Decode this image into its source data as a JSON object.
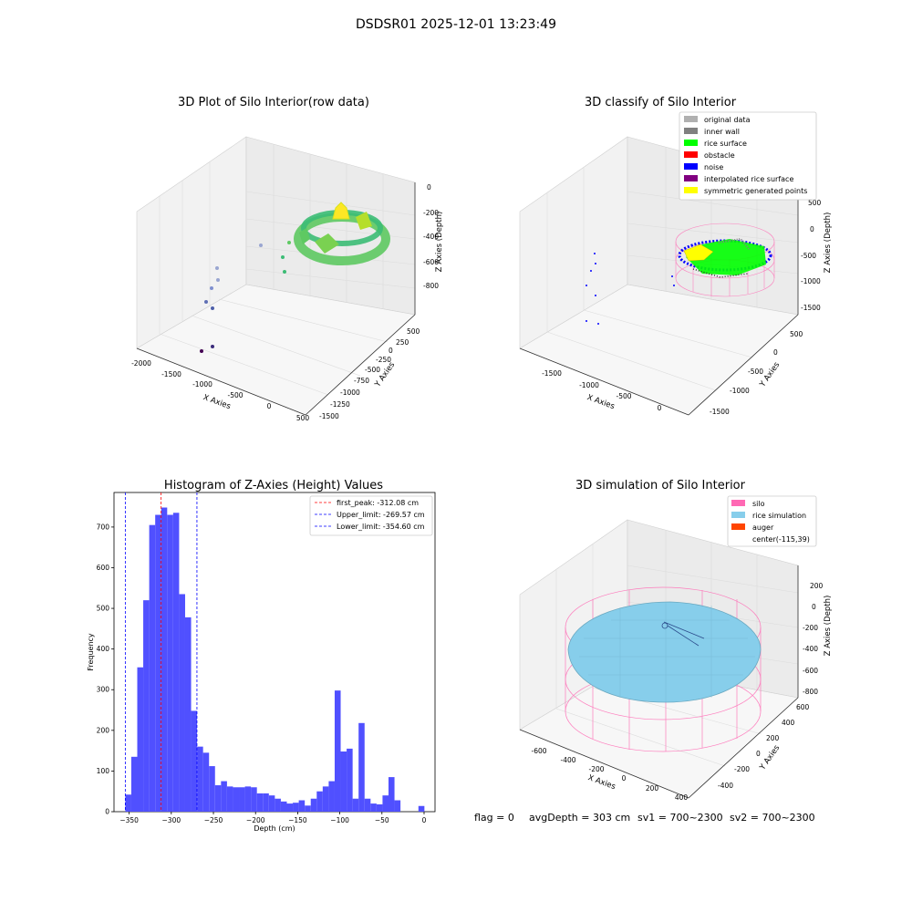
{
  "suptitle": "DSDSR01 2025-12-01 13:23:49",
  "colors": {
    "viridis": [
      "#440154",
      "#3b528b",
      "#21918c",
      "#5ec962",
      "#fde725"
    ],
    "pane": "#f2f2f2",
    "grid": "#dcdcdc",
    "hist": "#5050ff",
    "silo": "#ff69b4",
    "rice": "#87ceeb"
  },
  "panels": {
    "raw": {
      "title": "3D Plot of Silo Interior(row data)",
      "xlabel": "X Axies",
      "ylabel": "Y Axies",
      "zlabel": "Z Axies (Depth)",
      "xticks": [
        "-2000",
        "-1500",
        "-1000",
        "-500",
        "0",
        "500"
      ],
      "yticks": [
        "500",
        "250",
        "0",
        "-250",
        "-500",
        "-750",
        "-1000",
        "-1250",
        "-1500"
      ],
      "zticks": [
        "0",
        "-200",
        "-400",
        "-600",
        "-800"
      ]
    },
    "classify": {
      "title": "3D classify of Silo Interior",
      "xlabel": "X Axies",
      "ylabel": "Y Axies",
      "zlabel": "Z Axies (Depth)",
      "xticks": [
        "-1500",
        "-1000",
        "-500",
        "0"
      ],
      "yticks": [
        "500",
        "0",
        "-500",
        "-1000",
        "-1500"
      ],
      "zticks": [
        "500",
        "0",
        "-500",
        "-1000",
        "-1500"
      ],
      "legend": [
        {
          "label": "original data",
          "color": "#b0b0b0"
        },
        {
          "label": "inner wall",
          "color": "#808080"
        },
        {
          "label": "rice surface",
          "color": "#00ff00"
        },
        {
          "label": "obstacle",
          "color": "#ff0000"
        },
        {
          "label": "noise",
          "color": "#0000ff"
        },
        {
          "label": "interpolated rice surface",
          "color": "#800080"
        },
        {
          "label": "symmetric generated points",
          "color": "#ffff00"
        }
      ]
    },
    "simulation": {
      "title": "3D simulation of Silo Interior",
      "xlabel": "X Axies",
      "ylabel": "Y Axies",
      "zlabel": "Z Axies (Depth)",
      "xticks": [
        "-600",
        "-400",
        "-200",
        "0",
        "200",
        "400"
      ],
      "yticks": [
        "600",
        "400",
        "200",
        "0",
        "-200",
        "-400"
      ],
      "zticks": [
        "200",
        "0",
        "-200",
        "-400",
        "-600",
        "-800"
      ],
      "legend": [
        {
          "label": "silo",
          "color": "#ff69b4"
        },
        {
          "label": "rice simulation",
          "color": "#87ceeb"
        },
        {
          "label": "auger",
          "color": "#ff4500"
        },
        {
          "label": "center(-115,39)",
          "color": ""
        }
      ]
    }
  },
  "chart_data": {
    "type": "bar",
    "title": "Histogram of Z-Axies (Height) Values",
    "xlabel": "Depth (cm)",
    "ylabel": "Frequency",
    "xlim": [
      -368,
      13
    ],
    "ylim": [
      0,
      785
    ],
    "bin_width": 7.1,
    "xticks": [
      -350,
      -300,
      -250,
      -200,
      -150,
      -100,
      -50,
      0
    ],
    "yticks": [
      0,
      100,
      200,
      300,
      400,
      500,
      600,
      700
    ],
    "bins_start": [
      -354.6,
      -347.5,
      -340.4,
      -333.3,
      -326.2,
      -319.1,
      -312.0,
      -304.9,
      -297.8,
      -290.7,
      -283.6,
      -276.5,
      -269.4,
      -262.3,
      -255.2,
      -248.1,
      -241.0,
      -233.9,
      -226.8,
      -219.7,
      -212.6,
      -205.5,
      -198.4,
      -191.3,
      -184.2,
      -177.1,
      -170.0,
      -162.9,
      -155.8,
      -148.7,
      -141.6,
      -134.5,
      -127.4,
      -120.3,
      -113.2,
      -106.1,
      -99.0,
      -91.9,
      -84.8,
      -77.7,
      -70.6,
      -63.5,
      -56.4,
      -49.3,
      -42.2,
      -35.1,
      -28.0,
      -20.9,
      -13.8,
      -6.7
    ],
    "counts": [
      42,
      135,
      355,
      520,
      705,
      730,
      748,
      730,
      735,
      535,
      478,
      248,
      160,
      145,
      112,
      65,
      75,
      62,
      60,
      60,
      62,
      60,
      45,
      45,
      40,
      32,
      25,
      20,
      22,
      28,
      15,
      32,
      50,
      62,
      75,
      298,
      148,
      155,
      32,
      218,
      32,
      20,
      18,
      40,
      85,
      28,
      0,
      0,
      0,
      14
    ],
    "vlines": [
      {
        "label": "first_peak: -312.08 cm",
        "value": -312.08,
        "color": "#ff0000"
      },
      {
        "label": "Upper_limit: -269.57 cm",
        "value": -269.57,
        "color": "#0000ff"
      },
      {
        "label": "Lower_limit: -354.60 cm",
        "value": -354.6,
        "color": "#0000ff"
      }
    ]
  },
  "status": {
    "flag": "flag = 0",
    "avg": "avgDepth = 303 cm",
    "sv1": "sv1 = 700~2300",
    "sv2": "sv2 = 700~2300"
  }
}
